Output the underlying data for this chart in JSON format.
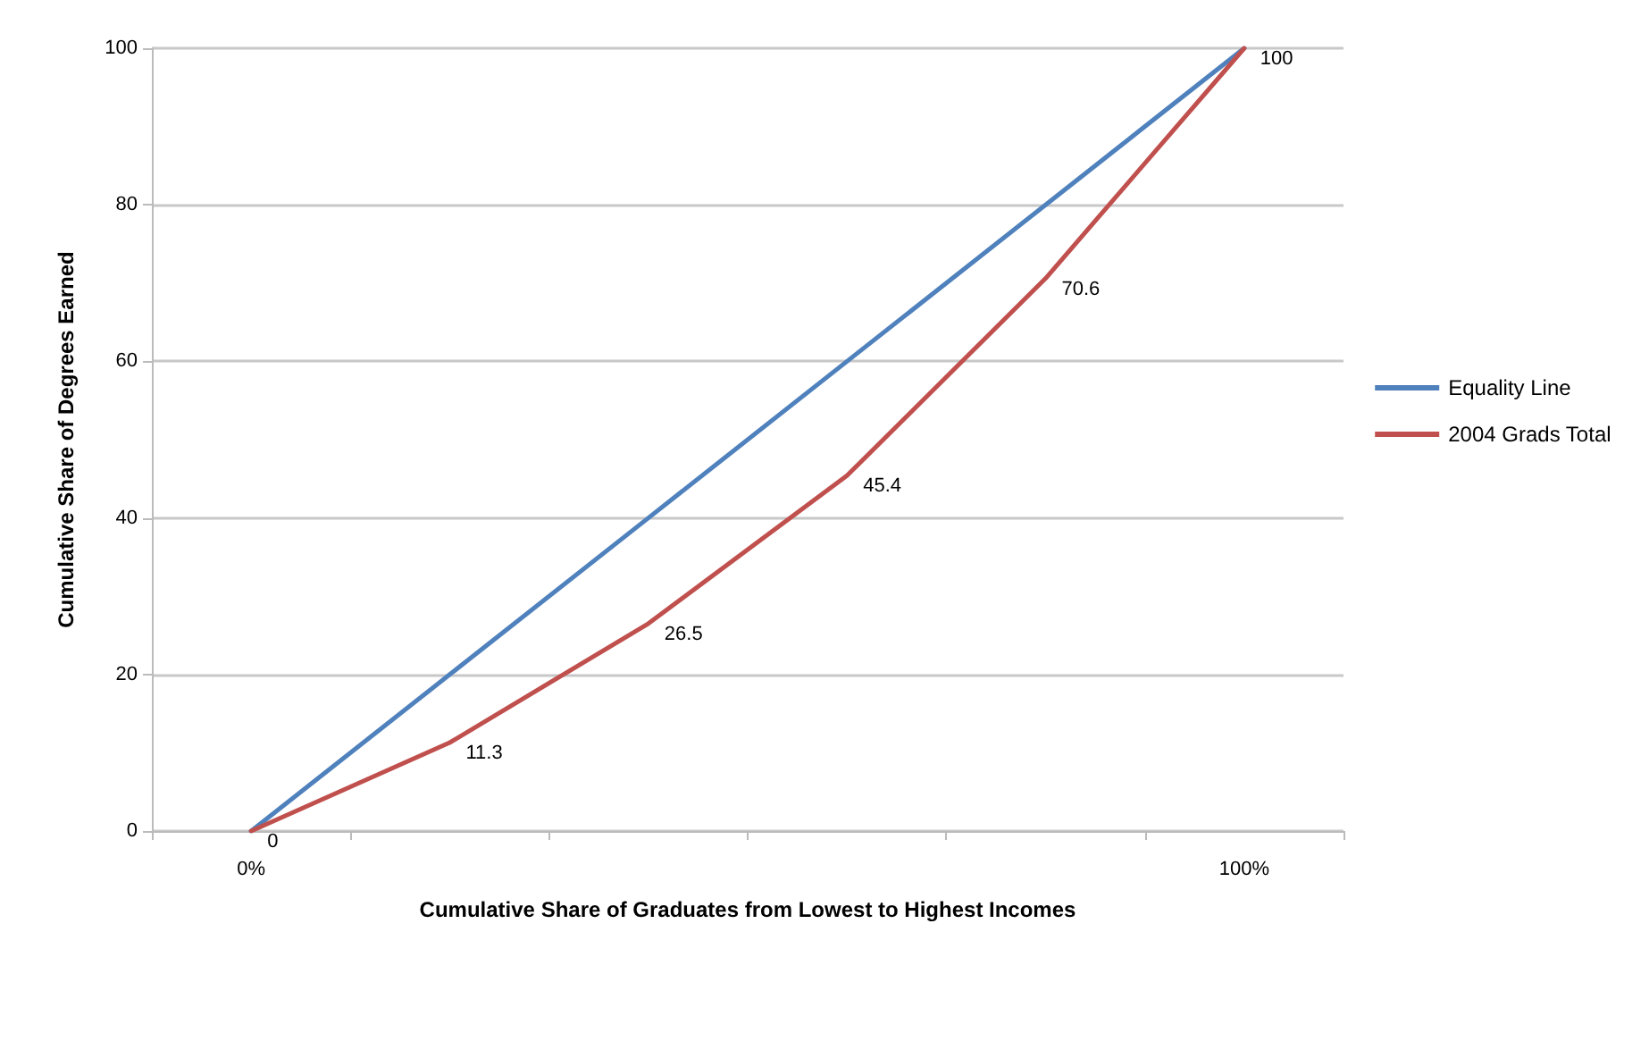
{
  "chart_data": {
    "type": "line",
    "xlabel": "Cumulative Share of Graduates from Lowest to Highest Incomes",
    "ylabel": "Cumulative Share of Degrees Earned",
    "categories": [
      "0%",
      null,
      null,
      null,
      null,
      "100%"
    ],
    "series": [
      {
        "name": "Equality Line",
        "color": "#4f81bd",
        "values": [
          0,
          20,
          40,
          60,
          80,
          100
        ]
      },
      {
        "name": "2004 Grads Total",
        "color": "#c0504d",
        "values": [
          0,
          11.3,
          26.5,
          45.4,
          70.6,
          100
        ],
        "value_labels": [
          "0",
          "11.3",
          "26.5",
          "45.4",
          "70.6",
          "100"
        ]
      }
    ],
    "ylim": [
      0,
      100
    ],
    "yticks": [
      0,
      20,
      40,
      60,
      80,
      100
    ],
    "grid": "y",
    "legend": "right",
    "marker": "none",
    "line_style": "solid"
  }
}
